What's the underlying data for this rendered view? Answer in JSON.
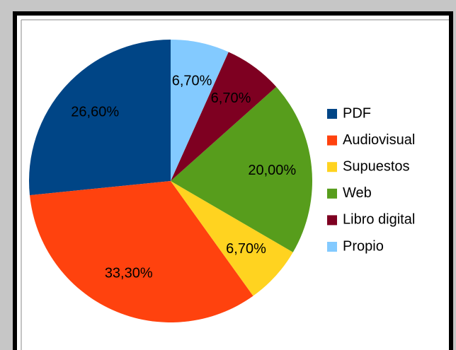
{
  "chart_data": {
    "type": "pie",
    "categories": [
      "PDF",
      "Audiovisual",
      "Supuestos",
      "Web",
      "Libro digital",
      "Propio"
    ],
    "values": [
      26.6,
      33.3,
      6.7,
      20.0,
      6.7,
      6.7
    ],
    "value_labels": [
      "26,60%",
      "33,30%",
      "6,70%",
      "20,00%",
      "6,70%",
      "6,70%"
    ],
    "colors": [
      "#004586",
      "#ff420e",
      "#ffd320",
      "#579d1c",
      "#7e0021",
      "#83caff"
    ],
    "legend": "right"
  }
}
